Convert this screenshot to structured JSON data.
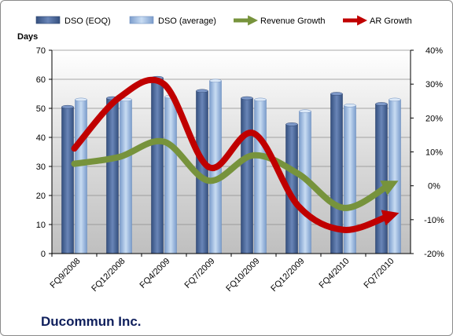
{
  "chart_data": {
    "type": "bar",
    "company": "Ducommun Inc.",
    "ylabel": "Days",
    "ylim": [
      0,
      70
    ],
    "yticks": [
      "0",
      "10",
      "20",
      "30",
      "40",
      "50",
      "60",
      "70"
    ],
    "y2lim": [
      -20,
      40
    ],
    "y2ticks": [
      "-20%",
      "-10%",
      "0%",
      "10%",
      "20%",
      "30%",
      "40%"
    ],
    "categories": [
      "FQ9/2008",
      "FQ12/2008",
      "FQ4/2009",
      "FQ7/2009",
      "FQ10/2009",
      "FQ12/2009",
      "FQ4/2010",
      "FQ7/2010"
    ],
    "series": [
      {
        "name": "DSO (EOQ)",
        "kind": "bar",
        "axis": "left",
        "color": "#4f6c9e",
        "values": [
          50.5,
          53.5,
          60.5,
          56,
          53.5,
          44.5,
          55,
          51.5
        ]
      },
      {
        "name": "DSO (average)",
        "kind": "bar",
        "axis": "left",
        "color": "#9ebde4",
        "values": [
          53,
          53,
          54,
          59.5,
          53,
          49,
          51,
          53
        ]
      },
      {
        "name": "Revenue Growth",
        "kind": "line",
        "axis": "right",
        "color": "#77933c",
        "values": [
          6.5,
          8.5,
          13,
          1.5,
          9,
          3.5,
          -6.5,
          0
        ]
      },
      {
        "name": "AR Growth",
        "kind": "line",
        "axis": "right",
        "color": "#c00000",
        "values": [
          11,
          26,
          30,
          5.5,
          15.5,
          -6,
          -13,
          -9
        ]
      }
    ],
    "grid": true,
    "legend": "top"
  }
}
